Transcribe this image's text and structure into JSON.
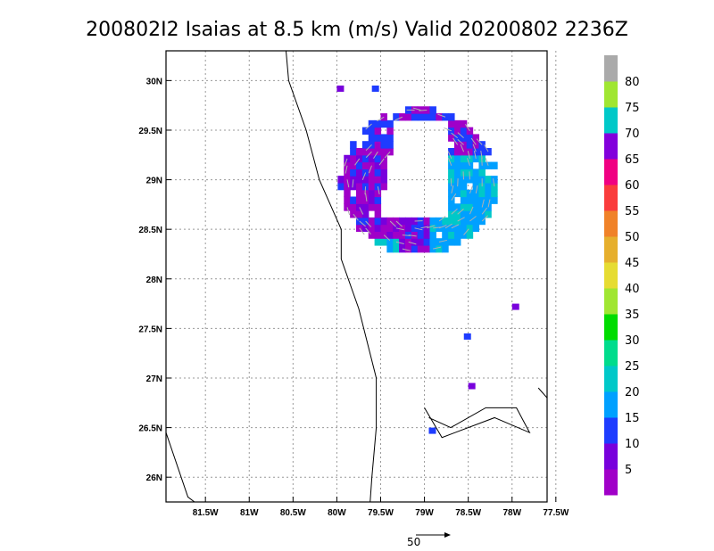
{
  "chart_data": {
    "type": "vector-field",
    "title": "200802I2 Isaias at 8.5 km (m/s) Valid 20200802 2236Z",
    "x_ticks": [
      "81.5W",
      "81W",
      "80.5W",
      "80W",
      "79.5W",
      "79W",
      "78.5W",
      "78W",
      "77.5W"
    ],
    "x_values": [
      -81.5,
      -81,
      -80.5,
      -80,
      -79.5,
      -79,
      -78.5,
      -78,
      -77.5
    ],
    "y_ticks": [
      "26N",
      "26.5N",
      "27N",
      "27.5N",
      "28N",
      "28.5N",
      "29N",
      "29.5N",
      "30N"
    ],
    "y_values": [
      26,
      26.5,
      27,
      27.5,
      28,
      28.5,
      29,
      29.5,
      30
    ],
    "xlim": [
      -81.95,
      -77.6
    ],
    "ylim": [
      25.75,
      30.3
    ],
    "grid": true,
    "colorbar": {
      "labels": [
        "5",
        "10",
        "15",
        "20",
        "25",
        "30",
        "35",
        "40",
        "45",
        "50",
        "55",
        "60",
        "65",
        "70",
        "75",
        "80"
      ],
      "colors": [
        "#a000c8",
        "#7800dc",
        "#1e3cff",
        "#00a0ff",
        "#00c8c8",
        "#00dc8c",
        "#00dc00",
        "#a0e632",
        "#e6dc32",
        "#e6af2d",
        "#f08228",
        "#fa3c3c",
        "#f00082",
        "#8200dc",
        "#00c8c8",
        "#a0e632",
        "#aaaaaa"
      ]
    },
    "reference_vector": {
      "label": "50",
      "value": 50
    },
    "coastlines": true
  }
}
